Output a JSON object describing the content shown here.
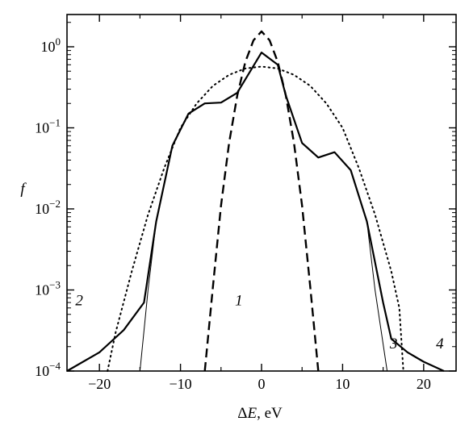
{
  "chart_data": {
    "type": "line",
    "xlabel": "ΔE, eV",
    "ylabel": "f",
    "xlim": [
      -24,
      24
    ],
    "ylim": [
      0.0001,
      2.5
    ],
    "yscale": "log",
    "grid": false,
    "x_ticks": [
      {
        "value": -20,
        "label": "−20"
      },
      {
        "value": -10,
        "label": "−10"
      },
      {
        "value": 0,
        "label": "0"
      },
      {
        "value": 10,
        "label": "10"
      },
      {
        "value": 20,
        "label": "20"
      }
    ],
    "y_ticks": [
      {
        "value": 0.0001,
        "base": "10",
        "exp": "−4"
      },
      {
        "value": 0.001,
        "base": "10",
        "exp": "−3"
      },
      {
        "value": 0.01,
        "base": "10",
        "exp": "−2"
      },
      {
        "value": 0.1,
        "base": "10",
        "exp": "−1"
      },
      {
        "value": 1,
        "base": "10",
        "exp": "0"
      }
    ],
    "series": [
      {
        "label": "1",
        "style": "dashed",
        "points": [
          [
            -7,
            0.0001
          ],
          [
            -6,
            0.0011
          ],
          [
            -5,
            0.011
          ],
          [
            -4,
            0.065
          ],
          [
            -3,
            0.25
          ],
          [
            -2,
            0.65
          ],
          [
            -1,
            1.2
          ],
          [
            0,
            1.55
          ],
          [
            1,
            1.2
          ],
          [
            2,
            0.65
          ],
          [
            3,
            0.25
          ],
          [
            4,
            0.065
          ],
          [
            5,
            0.011
          ],
          [
            6,
            0.0011
          ],
          [
            7,
            0.0001
          ]
        ]
      },
      {
        "label": "2",
        "style": "dotted",
        "points": [
          [
            -19,
            0.0001
          ],
          [
            -18,
            0.0003
          ],
          [
            -16,
            0.0017
          ],
          [
            -14,
            0.0085
          ],
          [
            -12,
            0.032
          ],
          [
            -10,
            0.1
          ],
          [
            -8,
            0.2
          ],
          [
            -6,
            0.33
          ],
          [
            -4,
            0.45
          ],
          [
            -2,
            0.54
          ],
          [
            0,
            0.57
          ],
          [
            2,
            0.54
          ],
          [
            4,
            0.45
          ],
          [
            6,
            0.33
          ],
          [
            8,
            0.2
          ],
          [
            10,
            0.1
          ],
          [
            12,
            0.032
          ],
          [
            14,
            0.0085
          ],
          [
            16,
            0.0017
          ],
          [
            17,
            0.0006
          ],
          [
            17.5,
            0.0001
          ]
        ]
      },
      {
        "label": "3",
        "style": "thin",
        "points": [
          [
            -15,
            0.0001
          ],
          [
            -14,
            0.001
          ],
          [
            -13,
            0.007
          ],
          [
            -11,
            0.06
          ],
          [
            -9,
            0.15
          ],
          [
            -7,
            0.2
          ],
          [
            -5,
            0.205
          ],
          [
            -3,
            0.27
          ],
          [
            0,
            0.85
          ],
          [
            2,
            0.6
          ],
          [
            3,
            0.25
          ],
          [
            5,
            0.065
          ],
          [
            7,
            0.043
          ],
          [
            9,
            0.05
          ],
          [
            11,
            0.03
          ],
          [
            13,
            0.007
          ],
          [
            14,
            0.001
          ],
          [
            15.5,
            0.0001
          ]
        ]
      },
      {
        "label": "4",
        "style": "solid",
        "points": [
          [
            -24,
            0.0001
          ],
          [
            -20,
            0.00017
          ],
          [
            -17,
            0.00032
          ],
          [
            -14.5,
            0.0007
          ],
          [
            -13,
            0.007
          ],
          [
            -11,
            0.06
          ],
          [
            -9,
            0.15
          ],
          [
            -7,
            0.2
          ],
          [
            -5,
            0.205
          ],
          [
            -3,
            0.27
          ],
          [
            0,
            0.85
          ],
          [
            2,
            0.6
          ],
          [
            3,
            0.25
          ],
          [
            5,
            0.065
          ],
          [
            7,
            0.043
          ],
          [
            9,
            0.05
          ],
          [
            11,
            0.03
          ],
          [
            13,
            0.007
          ],
          [
            15,
            0.0007
          ],
          [
            16,
            0.00025
          ],
          [
            18,
            0.00017
          ],
          [
            20,
            0.00013
          ],
          [
            22.5,
            0.0001
          ]
        ]
      }
    ],
    "curve_labels": [
      {
        "text": "1",
        "x": -2.8,
        "y": 0.00065
      },
      {
        "text": "2",
        "x": -22.5,
        "y": 0.00065
      },
      {
        "text": "3",
        "x": 16.3,
        "y": 0.00019
      },
      {
        "text": "4",
        "x": 22,
        "y": 0.00019
      }
    ]
  }
}
